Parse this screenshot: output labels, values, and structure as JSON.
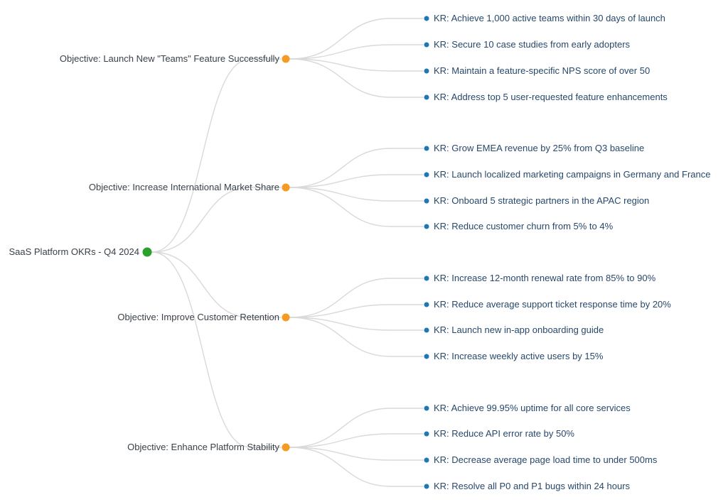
{
  "diagram": {
    "type": "mindmap-okr-tree",
    "colors": {
      "root_dot": "#2ca02c",
      "objective_dot": "#f59a23",
      "kr_dot": "#1f77b4",
      "link": "#d9d9d9",
      "node_text": "#3a4148",
      "kr_text": "#27486b"
    },
    "root": {
      "label": "SaaS Platform OKRs - Q4 2024",
      "children": [
        {
          "label": "Objective: Launch New \"Teams\" Feature Successfully",
          "krs": [
            "KR: Achieve 1,000 active teams within 30 days of launch",
            "KR: Secure 10 case studies from early adopters",
            "KR: Maintain a feature-specific NPS score of over 50",
            "KR: Address top 5 user-requested feature enhancements"
          ]
        },
        {
          "label": "Objective: Increase International Market Share",
          "krs": [
            "KR: Grow EMEA revenue by 25% from Q3 baseline",
            "KR: Launch localized marketing campaigns in Germany and France",
            "KR: Onboard 5 strategic partners in the APAC region",
            "KR: Reduce customer churn from 5% to 4%"
          ]
        },
        {
          "label": "Objective: Improve Customer Retention",
          "krs": [
            "KR: Increase 12-month renewal rate from 85% to 90%",
            "KR: Reduce average support ticket response time by 20%",
            "KR: Launch new in-app onboarding guide",
            "KR: Increase weekly active users by 15%"
          ]
        },
        {
          "label": "Objective: Enhance Platform Stability",
          "krs": [
            "KR: Achieve 99.95% uptime for all core services",
            "KR: Reduce API error rate by 50%",
            "KR: Decrease average page load time to under 500ms",
            "KR: Resolve all P0 and P1 bugs within 24 hours"
          ]
        }
      ]
    }
  }
}
